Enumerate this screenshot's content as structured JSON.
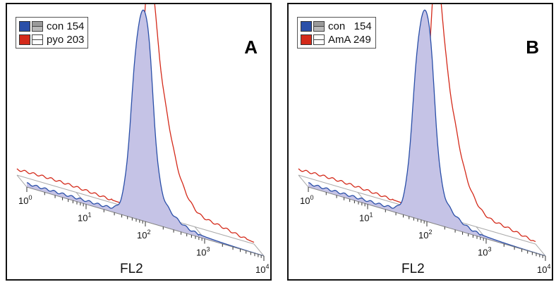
{
  "chart_data": [
    {
      "panel_letter": "A",
      "type": "histogram-overlay",
      "xlabel": "FL2",
      "x_scale": "log",
      "x_ticks": [
        "10^0",
        "10^1",
        "10^2",
        "10^3",
        "10^4"
      ],
      "legend_placement": "top-left",
      "series": [
        {
          "name": "con 154",
          "geo_mean": 154,
          "color": "#2a4fa8",
          "fill": "#c5c3e6",
          "filled": true
        },
        {
          "name": "pyo 203",
          "geo_mean": 203,
          "color": "#d42a1a",
          "fill": "#d42a1a",
          "filled": false
        }
      ]
    },
    {
      "panel_letter": "B",
      "type": "histogram-overlay",
      "xlabel": "FL2",
      "x_scale": "log",
      "x_ticks": [
        "10^0",
        "10^1",
        "10^2",
        "10^3",
        "10^4"
      ],
      "legend_placement": "top-left",
      "series": [
        {
          "name": "con   154",
          "geo_mean": 154,
          "color": "#2a4fa8",
          "fill": "#c5c3e6",
          "filled": true
        },
        {
          "name": "AmA 249",
          "geo_mean": 249,
          "color": "#d42a1a",
          "fill": "#d42a1a",
          "filled": false
        }
      ]
    }
  ]
}
